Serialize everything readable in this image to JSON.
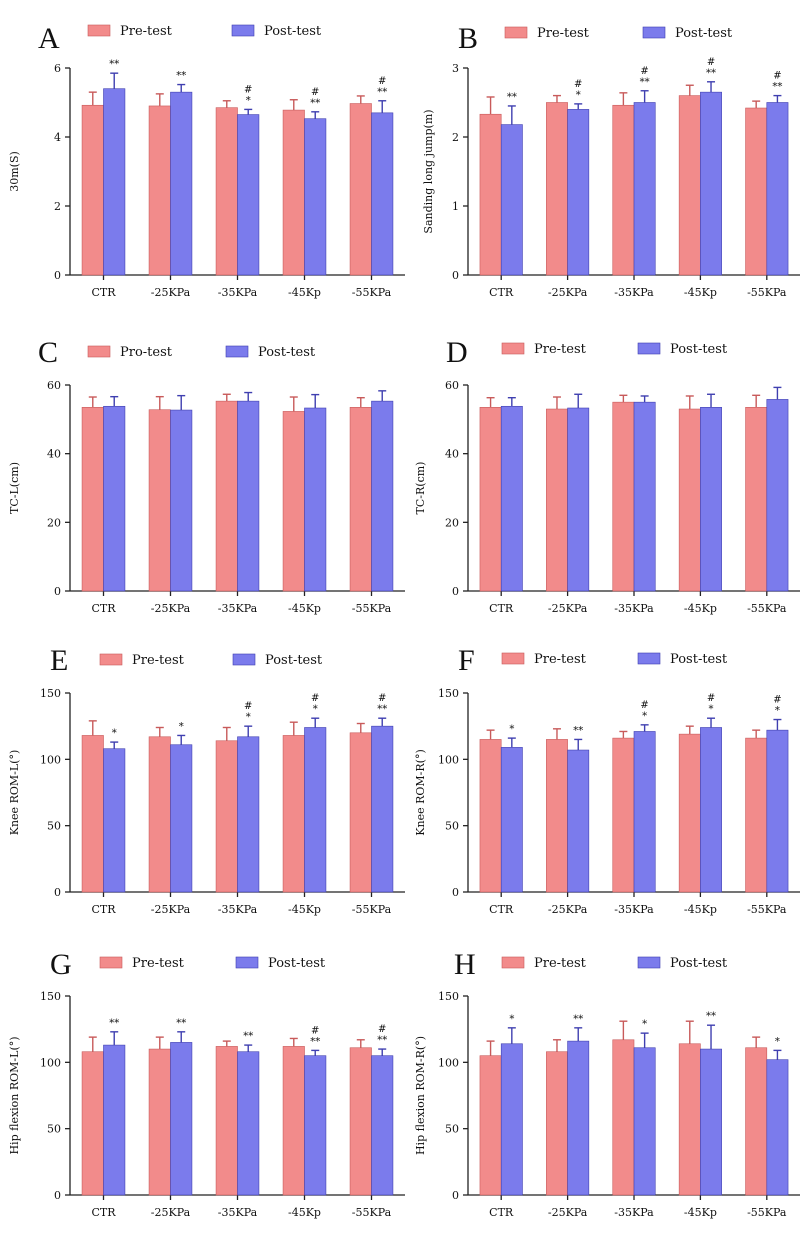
{
  "colors": {
    "pre_fill": "#f28b8b",
    "pre_stroke": "#c85a5a",
    "post_fill": "#7b7bec",
    "post_stroke": "#3f3fb0"
  },
  "chart_data": [
    {
      "type": "bar",
      "panel": "A",
      "title": "A",
      "ylabel": "30m(S)",
      "xlabel": "",
      "ylim": [
        0,
        6
      ],
      "yticks": [
        0,
        2,
        4,
        6
      ],
      "categories": [
        "CTR",
        "-25KPa",
        "-35KPa",
        "-45Kp",
        "-55KPa"
      ],
      "legend": [
        "Pre-test",
        "Post-test"
      ],
      "series": [
        {
          "name": "Pre-test",
          "values": [
            4.92,
            4.9,
            4.85,
            4.78,
            4.97
          ],
          "errors": [
            0.38,
            0.35,
            0.2,
            0.3,
            0.22
          ]
        },
        {
          "name": "Post-test",
          "values": [
            5.4,
            5.3,
            4.65,
            4.53,
            4.7
          ],
          "errors": [
            0.45,
            0.22,
            0.15,
            0.2,
            0.35
          ]
        }
      ],
      "annotations": [
        "**",
        "**",
        "#\n*",
        "#\n**",
        "#\n**"
      ]
    },
    {
      "type": "bar",
      "panel": "B",
      "title": "B",
      "ylabel": "Sanding long jump(m)",
      "xlabel": "",
      "ylim": [
        0,
        3
      ],
      "yticks": [
        0,
        1,
        2,
        3
      ],
      "categories": [
        "CTR",
        "-25KPa",
        "-35KPa",
        "-45Kp",
        "-55KPa"
      ],
      "legend": [
        "Pre-test",
        "Post-test"
      ],
      "series": [
        {
          "name": "Pre-test",
          "values": [
            2.33,
            2.5,
            2.46,
            2.6,
            2.42
          ],
          "errors": [
            0.25,
            0.1,
            0.18,
            0.15,
            0.1
          ]
        },
        {
          "name": "Post-test",
          "values": [
            2.18,
            2.4,
            2.5,
            2.65,
            2.5
          ],
          "errors": [
            0.27,
            0.08,
            0.17,
            0.15,
            0.1
          ]
        }
      ],
      "annotations": [
        "**",
        "#\n*",
        "#\n**",
        "#\n**",
        "#\n**"
      ]
    },
    {
      "type": "bar",
      "panel": "C",
      "title": "C",
      "ylabel": "TC-L(cm)",
      "xlabel": "",
      "ylim": [
        0,
        60
      ],
      "yticks": [
        0,
        20,
        40,
        60
      ],
      "categories": [
        "CTR",
        "-25KPa",
        "-35KPa",
        "-45Kp",
        "-55KPa"
      ],
      "legend": [
        "Pro-test",
        "Post-test"
      ],
      "series": [
        {
          "name": "Pro-test",
          "values": [
            53.5,
            52.8,
            55.3,
            52.3,
            53.5
          ],
          "errors": [
            3.0,
            3.8,
            2.0,
            4.2,
            2.8
          ]
        },
        {
          "name": "Post-test",
          "values": [
            53.8,
            52.7,
            55.3,
            53.3,
            55.3
          ],
          "errors": [
            2.8,
            4.2,
            2.5,
            3.9,
            3.0
          ]
        }
      ],
      "annotations": [
        "",
        "",
        "",
        "",
        ""
      ]
    },
    {
      "type": "bar",
      "panel": "D",
      "title": "D",
      "ylabel": "TC-R(cm)",
      "xlabel": "",
      "ylim": [
        0,
        60
      ],
      "yticks": [
        0,
        20,
        40,
        60
      ],
      "categories": [
        "CTR",
        "-25KPa",
        "-35KPa",
        "-45Kp",
        "-55KPa"
      ],
      "legend": [
        "Pre-test",
        "Post-test"
      ],
      "series": [
        {
          "name": "Pre-test",
          "values": [
            53.5,
            53.0,
            55.0,
            53.0,
            53.5
          ],
          "errors": [
            2.8,
            3.5,
            2.0,
            3.8,
            3.5
          ]
        },
        {
          "name": "Post-test",
          "values": [
            53.8,
            53.3,
            55.0,
            53.5,
            55.8
          ],
          "errors": [
            2.5,
            4.0,
            1.8,
            3.8,
            3.5
          ]
        }
      ],
      "annotations": [
        "",
        "",
        "",
        "",
        ""
      ]
    },
    {
      "type": "bar",
      "panel": "E",
      "title": "E",
      "ylabel": "Knee ROM-L(°)",
      "xlabel": "",
      "ylim": [
        0,
        150
      ],
      "yticks": [
        0,
        50,
        100,
        150
      ],
      "categories": [
        "CTR",
        "-25KPa",
        "-35KPa",
        "-45Kp",
        "-55KPa"
      ],
      "legend": [
        "Pre-test",
        "Post-test"
      ],
      "series": [
        {
          "name": "Pre-test",
          "values": [
            118,
            117,
            114,
            118,
            120
          ],
          "errors": [
            11,
            7,
            10,
            10,
            7
          ]
        },
        {
          "name": "Post-test",
          "values": [
            108,
            111,
            117,
            124,
            125
          ],
          "errors": [
            5,
            7,
            8,
            7,
            6
          ]
        }
      ],
      "annotations": [
        "*",
        "*",
        "#\n*",
        "#\n*",
        "#\n**"
      ]
    },
    {
      "type": "bar",
      "panel": "F",
      "title": "F",
      "ylabel": "Knee ROM-R(°)",
      "xlabel": "",
      "ylim": [
        0,
        150
      ],
      "yticks": [
        0,
        50,
        100,
        150
      ],
      "categories": [
        "CTR",
        "-25KPa",
        "-35KPa",
        "-45Kp",
        "-55KPa"
      ],
      "legend": [
        "Pre-test",
        "Post-test"
      ],
      "series": [
        {
          "name": "Pre-test",
          "values": [
            115,
            115,
            116,
            119,
            116
          ],
          "errors": [
            7,
            8,
            5,
            6,
            6
          ]
        },
        {
          "name": "Post-test",
          "values": [
            109,
            107,
            121,
            124,
            122
          ],
          "errors": [
            7,
            8,
            5,
            7,
            8
          ]
        }
      ],
      "annotations": [
        "*",
        "**",
        "#\n*",
        "#\n*",
        "#\n*"
      ]
    },
    {
      "type": "bar",
      "panel": "G",
      "title": "G",
      "ylabel": "Hip flexion ROM-L(°)",
      "xlabel": "",
      "ylim": [
        0,
        150
      ],
      "yticks": [
        0,
        50,
        100,
        150
      ],
      "categories": [
        "CTR",
        "-25KPa",
        "-35KPa",
        "-45Kp",
        "-55KPa"
      ],
      "legend": [
        "Pre-test",
        "Post-test"
      ],
      "series": [
        {
          "name": "Pre-test",
          "values": [
            108,
            110,
            112,
            112,
            111
          ],
          "errors": [
            11,
            9,
            4,
            6,
            6
          ]
        },
        {
          "name": "Post-test",
          "values": [
            113,
            115,
            108,
            105,
            105
          ],
          "errors": [
            10,
            8,
            5,
            4,
            5
          ]
        }
      ],
      "annotations": [
        "**",
        "**",
        "**",
        "#\n**",
        "#\n**"
      ]
    },
    {
      "type": "bar",
      "panel": "H",
      "title": "H",
      "ylabel": "Hip flexion ROM-R(°)",
      "xlabel": "",
      "ylim": [
        0,
        150
      ],
      "yticks": [
        0,
        50,
        100,
        150
      ],
      "categories": [
        "CTR",
        "-25KPa",
        "-35KPa",
        "-45Kp",
        "-55KPa"
      ],
      "legend": [
        "Pre-test",
        "Post-test"
      ],
      "series": [
        {
          "name": "Pre-test",
          "values": [
            105,
            108,
            117,
            114,
            111
          ],
          "errors": [
            11,
            9,
            14,
            17,
            8
          ]
        },
        {
          "name": "Post-test",
          "values": [
            114,
            116,
            111,
            110,
            102
          ],
          "errors": [
            12,
            10,
            11,
            18,
            7
          ]
        }
      ],
      "annotations": [
        "*",
        "**",
        "*",
        "**",
        "*"
      ]
    }
  ]
}
